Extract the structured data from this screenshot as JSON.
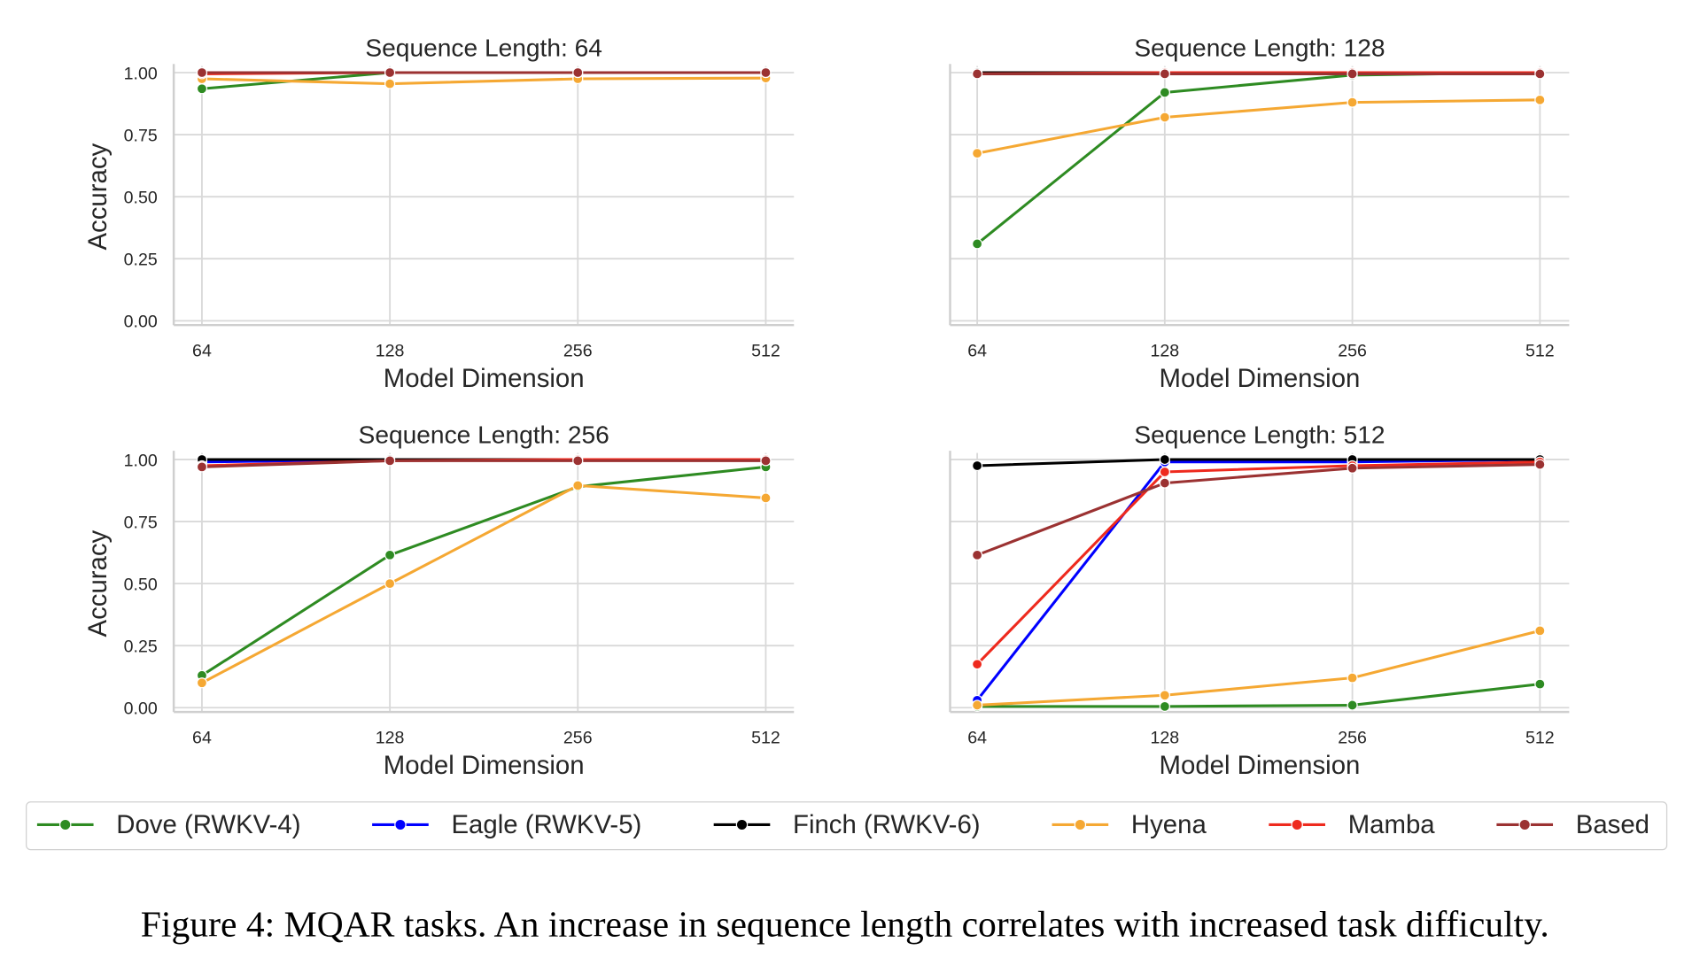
{
  "chart_data": [
    {
      "type": "line",
      "title": "Sequence Length: 64",
      "xlabel": "Model Dimension",
      "ylabel": "Accuracy",
      "categories": [
        "64",
        "128",
        "256",
        "512"
      ],
      "ylim": [
        0,
        1
      ],
      "yticks": [
        "0.00",
        "0.25",
        "0.50",
        "0.75",
        "1.00"
      ],
      "grid": true,
      "series": [
        {
          "name": "Dove (RWKV-4)",
          "values": [
            0.935,
            1.0,
            1.0,
            1.0
          ]
        },
        {
          "name": "Eagle (RWKV-5)",
          "values": [
            1.0,
            1.0,
            1.0,
            1.0
          ]
        },
        {
          "name": "Finch (RWKV-6)",
          "values": [
            1.0,
            1.0,
            1.0,
            1.0
          ]
        },
        {
          "name": "Hyena",
          "values": [
            0.975,
            0.955,
            0.975,
            0.978
          ]
        },
        {
          "name": "Mamba",
          "values": [
            0.995,
            1.0,
            1.0,
            1.0
          ]
        },
        {
          "name": "Based",
          "values": [
            1.0,
            1.0,
            1.0,
            1.0
          ]
        }
      ]
    },
    {
      "type": "line",
      "title": "Sequence Length: 128",
      "xlabel": "Model Dimension",
      "ylabel": "",
      "categories": [
        "64",
        "128",
        "256",
        "512"
      ],
      "ylim": [
        0,
        1
      ],
      "yticks": [],
      "grid": true,
      "series": [
        {
          "name": "Dove (RWKV-4)",
          "values": [
            0.31,
            0.92,
            0.99,
            1.0
          ]
        },
        {
          "name": "Eagle (RWKV-5)",
          "values": [
            1.0,
            1.0,
            1.0,
            1.0
          ]
        },
        {
          "name": "Finch (RWKV-6)",
          "values": [
            1.0,
            1.0,
            1.0,
            1.0
          ]
        },
        {
          "name": "Hyena",
          "values": [
            0.675,
            0.82,
            0.88,
            0.89
          ]
        },
        {
          "name": "Mamba",
          "values": [
            0.995,
            1.0,
            1.0,
            1.0
          ]
        },
        {
          "name": "Based",
          "values": [
            0.995,
            0.995,
            0.995,
            0.995
          ]
        }
      ]
    },
    {
      "type": "line",
      "title": "Sequence Length: 256",
      "xlabel": "Model Dimension",
      "ylabel": "Accuracy",
      "categories": [
        "64",
        "128",
        "256",
        "512"
      ],
      "ylim": [
        0,
        1
      ],
      "yticks": [
        "0.00",
        "0.25",
        "0.50",
        "0.75",
        "1.00"
      ],
      "grid": true,
      "series": [
        {
          "name": "Dove (RWKV-4)",
          "values": [
            0.13,
            0.615,
            0.89,
            0.97
          ]
        },
        {
          "name": "Eagle (RWKV-5)",
          "values": [
            0.99,
            1.0,
            1.0,
            1.0
          ]
        },
        {
          "name": "Finch (RWKV-6)",
          "values": [
            1.0,
            1.0,
            1.0,
            1.0
          ]
        },
        {
          "name": "Hyena",
          "values": [
            0.1,
            0.5,
            0.895,
            0.845
          ]
        },
        {
          "name": "Mamba",
          "values": [
            0.975,
            0.995,
            1.0,
            1.0
          ]
        },
        {
          "name": "Based",
          "values": [
            0.97,
            0.995,
            0.995,
            0.995
          ]
        }
      ]
    },
    {
      "type": "line",
      "title": "Sequence Length: 512",
      "xlabel": "Model Dimension",
      "ylabel": "",
      "categories": [
        "64",
        "128",
        "256",
        "512"
      ],
      "ylim": [
        0,
        1
      ],
      "yticks": [],
      "grid": true,
      "series": [
        {
          "name": "Dove (RWKV-4)",
          "values": [
            0.005,
            0.005,
            0.01,
            0.095
          ]
        },
        {
          "name": "Eagle (RWKV-5)",
          "values": [
            0.03,
            0.99,
            0.99,
            1.0
          ]
        },
        {
          "name": "Finch (RWKV-6)",
          "values": [
            0.975,
            1.0,
            1.0,
            1.0
          ]
        },
        {
          "name": "Hyena",
          "values": [
            0.01,
            0.05,
            0.12,
            0.31
          ]
        },
        {
          "name": "Mamba",
          "values": [
            0.175,
            0.95,
            0.975,
            0.99
          ]
        },
        {
          "name": "Based",
          "values": [
            0.615,
            0.905,
            0.965,
            0.98
          ]
        }
      ]
    }
  ],
  "legend": {
    "placement": "bottom",
    "entries": [
      {
        "name": "Dove (RWKV-4)",
        "color": "#2e8b22"
      },
      {
        "name": "Eagle (RWKV-5)",
        "color": "#0000ff"
      },
      {
        "name": "Finch (RWKV-6)",
        "color": "#000000"
      },
      {
        "name": "Hyena",
        "color": "#f5a833"
      },
      {
        "name": "Mamba",
        "color": "#ee2a1e"
      },
      {
        "name": "Based",
        "color": "#9b3232"
      }
    ]
  },
  "caption": "Figure 4: MQAR tasks. An increase in sequence length correlates with increased task difficulty."
}
